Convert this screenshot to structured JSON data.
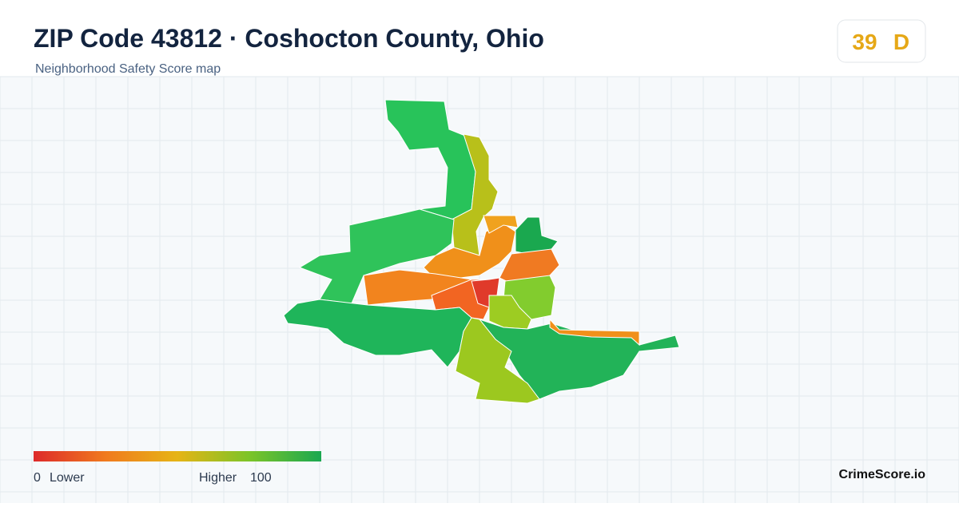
{
  "header": {
    "title": "ZIP Code 43812 · Coshocton County, Ohio",
    "subtitle": "Neighborhood Safety Score map"
  },
  "score": {
    "value": 39,
    "grade": "D"
  },
  "legend": {
    "min": 0,
    "min_label": "Lower",
    "max_label": "Higher",
    "max": 100
  },
  "brand": "CrimeScore.io"
}
